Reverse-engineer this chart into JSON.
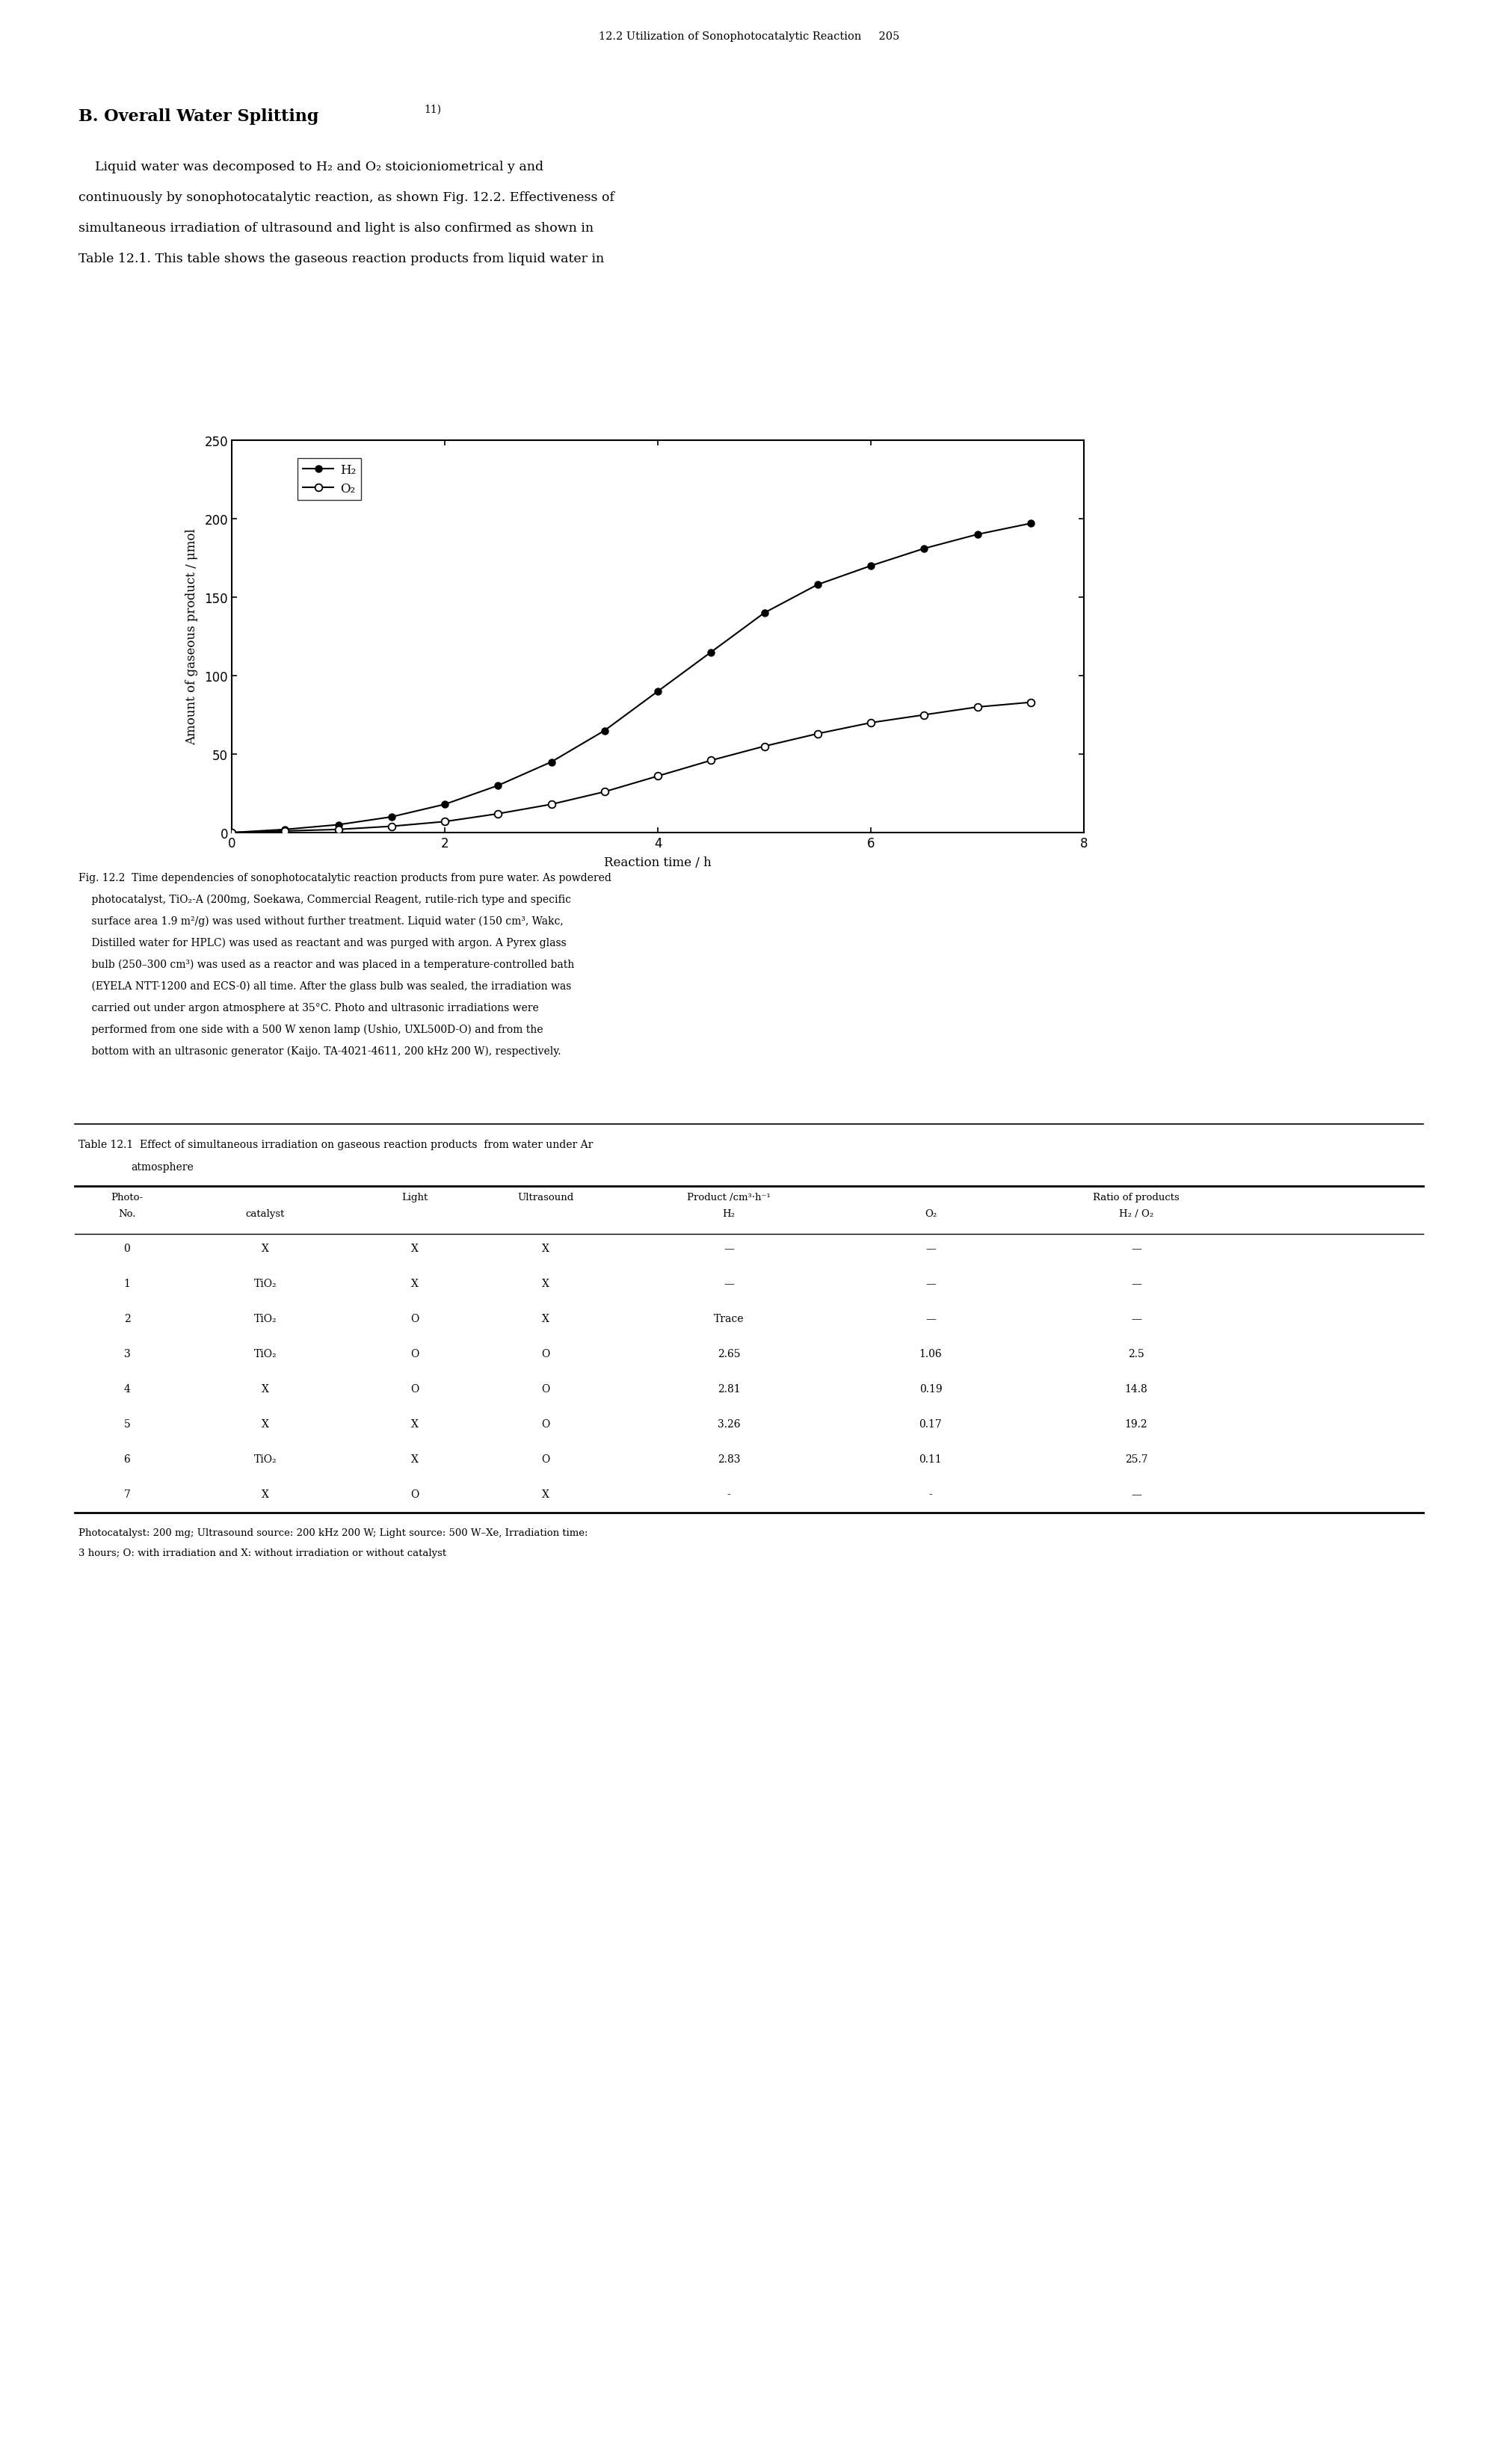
{
  "page_header": "12.2 Utilization of Sonophotocatalytic Reaction     205",
  "section_title": "B. Overall Water Splitting",
  "section_superscript": "11)",
  "body_text_lines": [
    "    Liquid water was decomposed to H₂ and O₂ stoicioniometrical y and",
    "continuously by sonophotocatalytic reaction, as shown Fig. 12.2. Effectiveness of",
    "simultaneous irradiation of ultrasound and light is also confirmed as shown in",
    "Table 12.1. This table shows the gaseous reaction products from liquid water in"
  ],
  "h2_x": [
    0,
    0.5,
    1.0,
    1.5,
    2.0,
    2.5,
    3.0,
    3.5,
    4.0,
    4.5,
    5.0,
    5.5,
    6.0,
    6.5,
    7.0,
    7.5
  ],
  "h2_y": [
    0,
    2,
    5,
    10,
    18,
    30,
    45,
    65,
    90,
    115,
    140,
    158,
    170,
    181,
    190,
    197
  ],
  "o2_x": [
    0,
    0.5,
    1.0,
    1.5,
    2.0,
    2.5,
    3.0,
    3.5,
    4.0,
    4.5,
    5.0,
    5.5,
    6.0,
    6.5,
    7.0,
    7.5
  ],
  "o2_y": [
    0,
    1,
    2,
    4,
    7,
    12,
    18,
    26,
    36,
    46,
    55,
    63,
    70,
    75,
    80,
    83
  ],
  "xlabel": "Reaction time / h",
  "ylabel": "Amount of gaseous product / μmol",
  "xlim": [
    0,
    8
  ],
  "ylim": [
    0,
    250
  ],
  "xticks": [
    0,
    2,
    4,
    6,
    8
  ],
  "yticks": [
    0,
    50,
    100,
    150,
    200,
    250
  ],
  "h2_label": "H₂",
  "o2_label": "O₂",
  "fig_caption_lines": [
    "Fig. 12.2  Time dependencies of sonophotocatalytic reaction products from pure water. As powdered",
    "    photocatalyst, TiO₂-A (200mg, Soekawa, Commercial Reagent, rutile-rich type and specific",
    "    surface area 1.9 m²/g) was used without further treatment. Liquid water (150 cm³, Wakc,",
    "    Distilled water for HPLC) was used as reactant and was purged with argon. A Pyrex glass",
    "    bulb (250–300 cm³) was used as a reactor and was placed in a temperature-controlled bath",
    "    (EYELA NTT-1200 and ECS-0) all time. After the glass bulb was sealed, the irradiation was",
    "    carried out under argon atmosphere at 35°C. Photo and ultrasonic irradiations were",
    "    performed from one side with a 500 W xenon lamp (Ushio, UXL500D-O) and from the",
    "    bottom with an ultrasonic generator (Kaijo. TA-4021-4611, 200 kHz 200 W), respectively."
  ],
  "table_title_line1": "Table 12.1  Effect of simultaneous irradiation on gaseous reaction products  from water under Ar",
  "table_title_line2": "atmosphere",
  "table_rows": [
    [
      "0",
      "X",
      "X",
      "X",
      "—",
      "—",
      "—"
    ],
    [
      "1",
      "TiO₂",
      "X",
      "X",
      "—",
      "—",
      "—"
    ],
    [
      "2",
      "TiO₂",
      "O",
      "X",
      "Trace",
      "—",
      "—"
    ],
    [
      "3",
      "TiO₂",
      "O",
      "O",
      "2.65",
      "1.06",
      "2.5"
    ],
    [
      "4",
      "X",
      "O",
      "O",
      "2.81",
      "0.19",
      "14.8"
    ],
    [
      "5",
      "X",
      "X",
      "O",
      "3.26",
      "0.17",
      "19.2"
    ],
    [
      "6",
      "TiO₂",
      "X",
      "O",
      "2.83",
      "0.11",
      "25.7"
    ],
    [
      "7",
      "X",
      "O",
      "X",
      "-",
      "-",
      "—"
    ]
  ],
  "table_footnote_lines": [
    "Photocatalyst: 200 mg; Ultrasound source: 200 kHz 200 W; Light source: 500 W–Xe, Irradiation time:",
    "3 hours; O: with irradiation and X: without irradiation or without catalyst"
  ],
  "background_color": "#ffffff",
  "text_color": "#000000"
}
